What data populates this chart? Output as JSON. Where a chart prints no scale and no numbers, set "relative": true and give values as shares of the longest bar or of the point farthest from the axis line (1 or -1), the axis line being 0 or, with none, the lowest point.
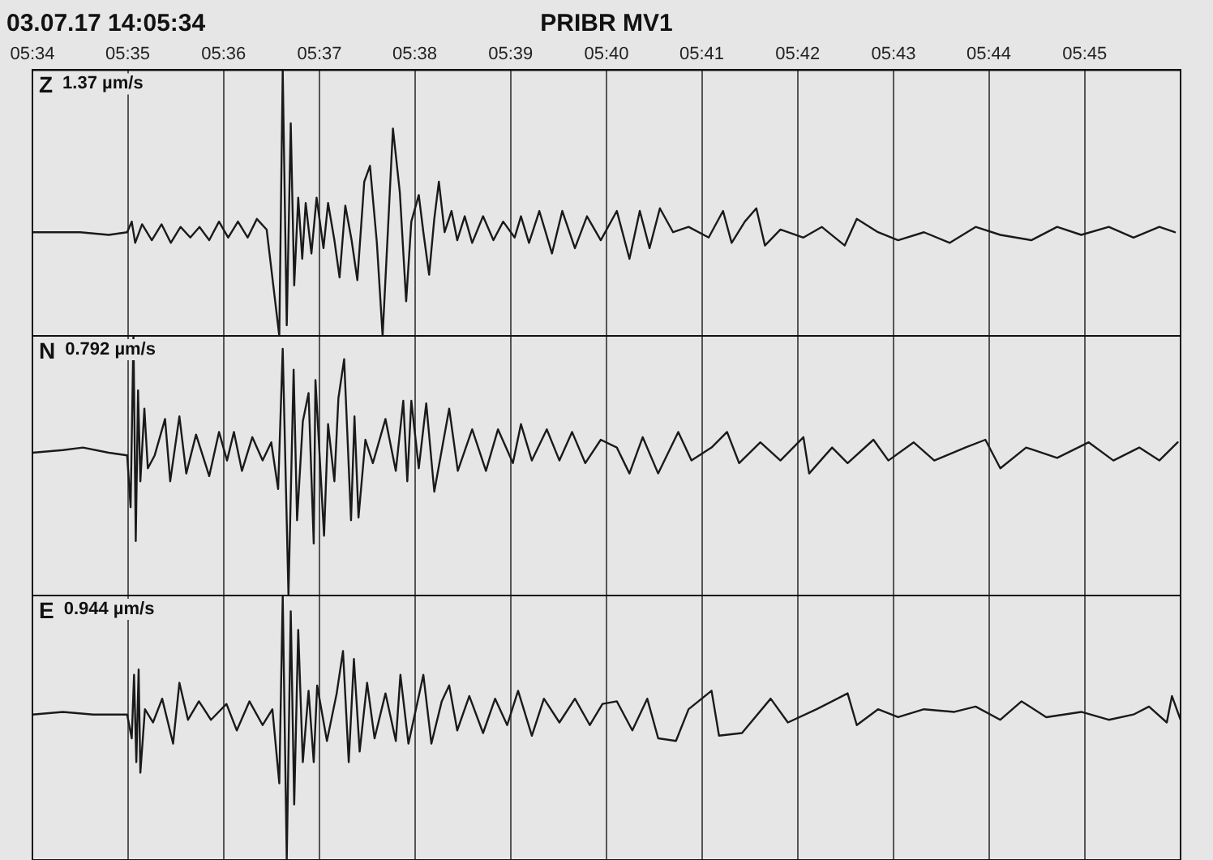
{
  "chart_data": [
    {
      "type": "line",
      "title": "03.07.17 14:05:34",
      "subtitle": "PRIBR   MV1",
      "relative": true,
      "grid": "x",
      "tick_labels": "x",
      "legend": false,
      "marker": "none",
      "line_style": "solid",
      "annotations": [
        "1.37 µm/s"
      ],
      "xlim": [
        5.5667,
        5.7667
      ],
      "xticks": [
        {
          "value": 5.5667,
          "label": "05:34"
        },
        {
          "value": 5.5833,
          "label": "05:35"
        },
        {
          "value": 5.6,
          "label": "05:36"
        },
        {
          "value": 5.6167,
          "label": "05:37"
        },
        {
          "value": 5.6333,
          "label": "05:38"
        },
        {
          "value": 5.65,
          "label": "05:39"
        },
        {
          "value": 5.6667,
          "label": "05:40"
        },
        {
          "value": 5.6833,
          "label": "05:41"
        },
        {
          "value": 5.7,
          "label": "05:42"
        },
        {
          "value": 5.7167,
          "label": "05:43"
        },
        {
          "value": 5.7333,
          "label": "05:44"
        },
        {
          "value": 5.75,
          "label": "05:45"
        }
      ],
      "x": [
        5.5667,
        5.575,
        5.58,
        5.5832,
        5.584,
        5.5846,
        5.5858,
        5.5875,
        5.5892,
        5.5908,
        5.5925,
        5.5942,
        5.5958,
        5.5975,
        5.5992,
        5.6008,
        5.6025,
        5.6042,
        5.6058,
        5.6075,
        5.6097,
        5.6103,
        5.611,
        5.6117,
        5.6123,
        5.613,
        5.6137,
        5.6143,
        5.6153,
        5.6162,
        5.6174,
        5.6182,
        5.6193,
        5.6202,
        5.6212,
        5.6223,
        5.6233,
        5.6245,
        5.6255,
        5.6267,
        5.6277,
        5.6287,
        5.6295,
        5.6307,
        5.6318,
        5.6327,
        5.634,
        5.6348,
        5.6358,
        5.6367,
        5.6375,
        5.6385,
        5.6397,
        5.6407,
        5.642,
        5.6433,
        5.6452,
        5.647,
        5.6487,
        5.6507,
        5.6518,
        5.6532,
        5.655,
        5.6572,
        5.659,
        5.6612,
        5.6633,
        5.6657,
        5.6685,
        5.6707,
        5.6725,
        5.6742,
        5.676,
        5.6783,
        5.681,
        5.6845,
        5.687,
        5.6885,
        5.6908,
        5.6928,
        5.6943,
        5.697,
        5.701,
        5.7042,
        5.7082,
        5.7103,
        5.714,
        5.7175,
        5.722,
        5.7265,
        5.731,
        5.7353,
        5.7407,
        5.7452,
        5.7494,
        5.7542,
        5.7585,
        5.763,
        5.7657
      ],
      "series": [
        {
          "name": "Z",
          "color": "#1a1a1a",
          "values": [
            0.39,
            0.39,
            0.38,
            0.39,
            0.43,
            0.35,
            0.42,
            0.36,
            0.42,
            0.35,
            0.41,
            0.37,
            0.41,
            0.36,
            0.43,
            0.37,
            0.43,
            0.37,
            0.44,
            0.4,
            0.0,
            1.0,
            0.04,
            0.8,
            0.19,
            0.52,
            0.29,
            0.5,
            0.31,
            0.52,
            0.33,
            0.5,
            0.36,
            0.22,
            0.49,
            0.36,
            0.21,
            0.58,
            0.64,
            0.35,
            0.0,
            0.43,
            0.78,
            0.54,
            0.13,
            0.43,
            0.53,
            0.39,
            0.23,
            0.44,
            0.58,
            0.39,
            0.47,
            0.36,
            0.45,
            0.35,
            0.45,
            0.36,
            0.43,
            0.37,
            0.45,
            0.35,
            0.47,
            0.31,
            0.47,
            0.33,
            0.45,
            0.36,
            0.47,
            0.29,
            0.47,
            0.33,
            0.48,
            0.39,
            0.41,
            0.37,
            0.47,
            0.35,
            0.43,
            0.48,
            0.34,
            0.4,
            0.37,
            0.41,
            0.34,
            0.44,
            0.39,
            0.36,
            0.39,
            0.35,
            0.41,
            0.38,
            0.36,
            0.41,
            0.38,
            0.41,
            0.37,
            0.41,
            0.39
          ]
        }
      ]
    },
    {
      "type": "line",
      "relative": true,
      "grid": "x",
      "tick_labels": false,
      "legend": false,
      "marker": "none",
      "line_style": "solid",
      "annotations": [
        "0.792 µm/s"
      ],
      "xlim": [
        5.5667,
        5.7667
      ],
      "xticks": [
        {
          "value": 5.5667,
          "label": null
        },
        {
          "value": 5.5833,
          "label": null
        },
        {
          "value": 5.6,
          "label": null
        },
        {
          "value": 5.6167,
          "label": null
        },
        {
          "value": 5.6333,
          "label": null
        },
        {
          "value": 5.65,
          "label": null
        },
        {
          "value": 5.6667,
          "label": null
        },
        {
          "value": 5.6833,
          "label": null
        },
        {
          "value": 5.7,
          "label": null
        },
        {
          "value": 5.7167,
          "label": null
        },
        {
          "value": 5.7333,
          "label": null
        },
        {
          "value": 5.75,
          "label": null
        }
      ],
      "x": [
        5.5667,
        5.572,
        5.5755,
        5.58,
        5.5832,
        5.5838,
        5.5843,
        5.5847,
        5.5851,
        5.5855,
        5.5862,
        5.5868,
        5.588,
        5.5898,
        5.5907,
        5.5923,
        5.5935,
        5.5952,
        5.5975,
        5.5992,
        5.6006,
        5.6018,
        5.6032,
        5.605,
        5.6068,
        5.6083,
        5.6095,
        5.6103,
        5.6113,
        5.6122,
        5.6128,
        5.6138,
        5.6148,
        5.6157,
        5.616,
        5.6175,
        5.6182,
        5.6193,
        5.62,
        5.621,
        5.6222,
        5.6228,
        5.6235,
        5.6247,
        5.626,
        5.6282,
        5.63,
        5.6313,
        5.632,
        5.6327,
        5.634,
        5.6353,
        5.6367,
        5.638,
        5.6393,
        5.6408,
        5.6433,
        5.6457,
        5.6478,
        5.6504,
        5.6518,
        5.6537,
        5.6563,
        5.6585,
        5.6607,
        5.663,
        5.6657,
        5.6685,
        5.6707,
        5.673,
        5.6757,
        5.6792,
        5.6815,
        5.685,
        5.6877,
        5.6898,
        5.6935,
        5.697,
        5.701,
        5.702,
        5.706,
        5.7087,
        5.7132,
        5.7158,
        5.7202,
        5.7238,
        5.7292,
        5.7327,
        5.7353,
        5.7398,
        5.7452,
        5.7507,
        5.755,
        5.7595,
        5.763,
        5.7662
      ],
      "series": [
        {
          "name": "N",
          "color": "#1a1a1a",
          "values": [
            0.55,
            0.56,
            0.57,
            0.55,
            0.54,
            0.34,
            1.0,
            0.21,
            0.79,
            0.44,
            0.72,
            0.49,
            0.54,
            0.68,
            0.44,
            0.69,
            0.47,
            0.62,
            0.46,
            0.63,
            0.52,
            0.63,
            0.48,
            0.61,
            0.52,
            0.59,
            0.41,
            0.95,
            0.0,
            0.87,
            0.29,
            0.67,
            0.78,
            0.2,
            0.83,
            0.23,
            0.66,
            0.44,
            0.76,
            0.91,
            0.29,
            0.69,
            0.3,
            0.6,
            0.51,
            0.68,
            0.48,
            0.75,
            0.44,
            0.75,
            0.49,
            0.74,
            0.4,
            0.56,
            0.72,
            0.48,
            0.64,
            0.48,
            0.64,
            0.51,
            0.66,
            0.52,
            0.64,
            0.52,
            0.63,
            0.51,
            0.6,
            0.57,
            0.47,
            0.61,
            0.47,
            0.63,
            0.52,
            0.57,
            0.63,
            0.51,
            0.59,
            0.52,
            0.61,
            0.47,
            0.57,
            0.51,
            0.6,
            0.52,
            0.59,
            0.52,
            0.57,
            0.6,
            0.49,
            0.57,
            0.53,
            0.59,
            0.52,
            0.57,
            0.52,
            0.59
          ]
        }
      ]
    },
    {
      "type": "line",
      "relative": true,
      "grid": "x",
      "tick_labels": false,
      "legend": false,
      "marker": "none",
      "line_style": "solid",
      "annotations": [
        "0.944 µm/s"
      ],
      "xlim": [
        5.5667,
        5.7667
      ],
      "xticks": [
        {
          "value": 5.5667,
          "label": null
        },
        {
          "value": 5.5833,
          "label": null
        },
        {
          "value": 5.6,
          "label": null
        },
        {
          "value": 5.6167,
          "label": null
        },
        {
          "value": 5.6333,
          "label": null
        },
        {
          "value": 5.65,
          "label": null
        },
        {
          "value": 5.6667,
          "label": null
        },
        {
          "value": 5.6833,
          "label": null
        },
        {
          "value": 5.7,
          "label": null
        },
        {
          "value": 5.7167,
          "label": null
        },
        {
          "value": 5.7333,
          "label": null
        },
        {
          "value": 5.75,
          "label": null
        }
      ],
      "x": [
        5.5667,
        5.572,
        5.5773,
        5.5832,
        5.584,
        5.5844,
        5.5848,
        5.5852,
        5.5855,
        5.5863,
        5.5877,
        5.5893,
        5.5912,
        5.5923,
        5.5938,
        5.5957,
        5.5978,
        5.6005,
        5.6023,
        5.6045,
        5.6068,
        5.6085,
        5.6097,
        5.6103,
        5.611,
        5.6117,
        5.6123,
        5.613,
        5.6138,
        5.6148,
        5.6157,
        5.6163,
        5.618,
        5.6197,
        5.6208,
        5.6218,
        5.6227,
        5.6237,
        5.625,
        5.6263,
        5.6282,
        5.63,
        5.6308,
        5.6322,
        5.6339,
        5.6348,
        5.6362,
        5.638,
        5.6393,
        5.6407,
        5.6428,
        5.6452,
        5.6473,
        5.6494,
        5.6513,
        5.6537,
        5.6558,
        5.6585,
        5.6612,
        5.6638,
        5.666,
        5.6685,
        5.6712,
        5.6738,
        5.6757,
        5.6788,
        5.681,
        5.685,
        5.6863,
        5.6903,
        5.6953,
        5.6983,
        5.7033,
        5.7087,
        5.7103,
        5.714,
        5.7175,
        5.722,
        5.7273,
        5.731,
        5.7353,
        5.739,
        5.7433,
        5.7494,
        5.7542,
        5.7585,
        5.7612,
        5.7643,
        5.7652,
        5.7667
      ],
      "series": [
        {
          "name": "E",
          "color": "#1a1a1a",
          "values": [
            0.55,
            0.56,
            0.55,
            0.55,
            0.46,
            0.7,
            0.37,
            0.72,
            0.33,
            0.57,
            0.52,
            0.61,
            0.44,
            0.67,
            0.53,
            0.6,
            0.53,
            0.59,
            0.49,
            0.6,
            0.51,
            0.57,
            0.29,
            1.0,
            0.0,
            0.94,
            0.21,
            0.87,
            0.37,
            0.64,
            0.37,
            0.66,
            0.45,
            0.63,
            0.79,
            0.37,
            0.76,
            0.41,
            0.67,
            0.46,
            0.63,
            0.45,
            0.7,
            0.44,
            0.61,
            0.7,
            0.44,
            0.6,
            0.66,
            0.49,
            0.62,
            0.48,
            0.61,
            0.51,
            0.64,
            0.47,
            0.61,
            0.52,
            0.61,
            0.51,
            0.59,
            0.6,
            0.49,
            0.61,
            0.46,
            0.45,
            0.57,
            0.64,
            0.47,
            0.48,
            0.61,
            0.52,
            0.57,
            0.63,
            0.51,
            0.57,
            0.54,
            0.57,
            0.56,
            0.58,
            0.53,
            0.6,
            0.54,
            0.56,
            0.53,
            0.55,
            0.58,
            0.52,
            0.62,
            0.53
          ]
        }
      ]
    }
  ]
}
